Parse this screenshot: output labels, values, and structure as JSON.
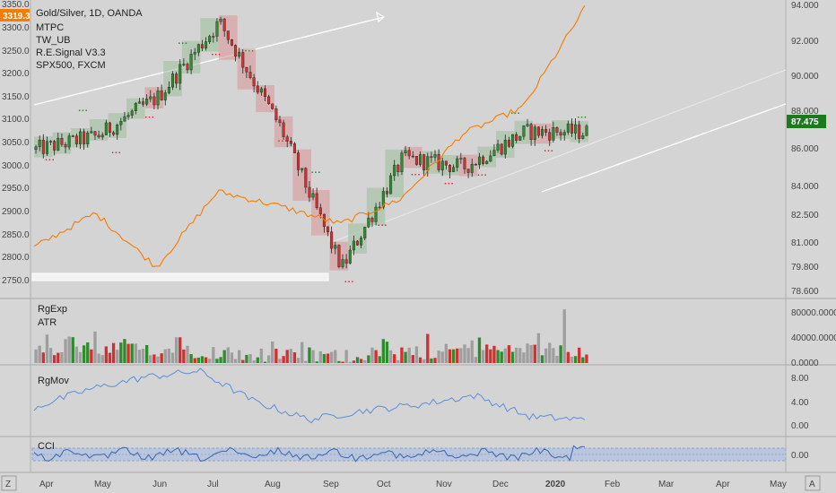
{
  "legend": {
    "title": "Gold/Silver, 1D, OANDA",
    "studies": [
      "MTPC",
      "TW_UB",
      "R.E.Signal V3.3",
      "SPX500, FXCM"
    ]
  },
  "price": {
    "left_axis_ticks": [
      "3350.0",
      "3300.0",
      "3250.0",
      "3200.0",
      "3150.0",
      "3100.0",
      "3050.0",
      "3000.0",
      "2950.0",
      "2900.0",
      "2850.0",
      "2800.0",
      "2750.0"
    ],
    "right_axis_ticks": [
      "94.000",
      "92.000",
      "90.000",
      "88.000",
      "86.000",
      "84.000",
      "82.500",
      "81.000",
      "79.800",
      "78.600"
    ],
    "left_tag": "3319.3",
    "right_tag": "87.475",
    "left_tag_color": "#f57c00",
    "right_tag_color": "#1b7a1b"
  },
  "panes": {
    "volume": {
      "labels": [
        "RgExp",
        "ATR"
      ],
      "ticks": [
        "80000.0000",
        "40000.0000",
        "0.0000"
      ]
    },
    "rgmov": {
      "labels": [
        "RgMov"
      ],
      "ticks": [
        "8.00",
        "4.00",
        "0.00"
      ]
    },
    "cci": {
      "labels": [
        "CCI"
      ],
      "ticks": [
        "0.00"
      ]
    }
  },
  "time_axis": [
    "Apr",
    "May",
    "Jun",
    "Jul",
    "Aug",
    "Sep",
    "Oct",
    "Nov",
    "Dec",
    "2020",
    "Feb",
    "Mar",
    "Apr",
    "May"
  ],
  "corner_icons": {
    "left": "Z",
    "right": "A"
  },
  "colors": {
    "up": "#2e8b2e",
    "down": "#d32f2f",
    "spx": "#f57c00",
    "neutral": "#9e9e9e",
    "rgmov": "#5b8fd6",
    "cci": "#3a66b0"
  },
  "chart_data": {
    "type": "line",
    "title": "Gold/Silver, 1D, OANDA",
    "x": [
      "Apr",
      "May",
      "Jun",
      "Jul",
      "Aug",
      "Sep",
      "Oct",
      "Nov",
      "Dec",
      "2020"
    ],
    "series": [
      {
        "name": "Gold/Silver, 1D, OANDA",
        "values": [
          3030,
          3060,
          3150,
          3320,
          3080,
          2760,
          3010,
          2990,
          3070,
          3070
        ]
      },
      {
        "name": "SPX500, FXCM",
        "values": [
          80.5,
          82.4,
          79.4,
          83.6,
          82.8,
          81.8,
          83.2,
          86.8,
          88.3,
          93.8
        ]
      }
    ],
    "ylim_left": [
      2730,
      3360
    ],
    "ylim_right": [
      78.6,
      94.0
    ]
  }
}
